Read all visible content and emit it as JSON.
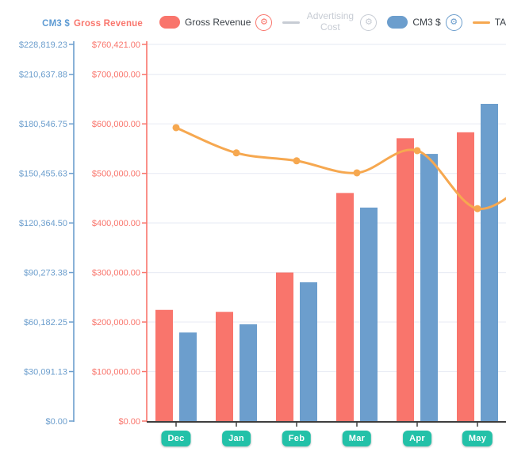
{
  "colors": {
    "grid": "#EAEDF5",
    "x_axis_line": "#3E3E3E",
    "badge_background": "#23C1A8",
    "badge_text": "#FFFFFF",
    "legend_text": "#3A4047",
    "disabled_text": "#C7CCD4",
    "background": "#FFFFFF"
  },
  "legend": {
    "gear_icon": "⚙",
    "items": [
      {
        "id": "gross-revenue",
        "label": "Gross Revenue",
        "swatch": "box",
        "color": "#F9756C",
        "enabled": true,
        "wrap": false
      },
      {
        "id": "advertising-cost",
        "label": "Advertising Cost",
        "swatch": "line",
        "color": "#C7CCD4",
        "enabled": false,
        "wrap": true
      },
      {
        "id": "cm3",
        "label": "CM3 $",
        "swatch": "box",
        "color": "#6C9ECD",
        "enabled": true,
        "wrap": false
      },
      {
        "id": "tacos",
        "label": "TACoS",
        "swatch": "line",
        "color": "#F6A850",
        "enabled": true,
        "wrap": false
      }
    ]
  },
  "chart_data": {
    "type": "bar",
    "subtype": "grouped bars with overlay line, dual left axes",
    "categories": [
      "Dec",
      "Jan",
      "Feb",
      "Mar",
      "Apr",
      "May"
    ],
    "grid": true,
    "x_tick_style": "teal rounded badges",
    "axes": {
      "cm3": {
        "title": "CM3 $",
        "color": "#6C9ECD",
        "max": 228819.23,
        "tick_values": [
          228819.23,
          210637.88,
          180546.75,
          150455.63,
          120364.5,
          90273.38,
          60182.25,
          30091.13,
          0
        ],
        "tick_labels": [
          "$228,819.23",
          "$210,637.88",
          "$180,546.75",
          "$150,455.63",
          "$120,364.50",
          "$90,273.38",
          "$60,182.25",
          "$30,091.13",
          "$0.00"
        ]
      },
      "gross": {
        "title": "Gross Revenue",
        "color": "#F9756C",
        "max": 760421,
        "tick_values": [
          760421,
          700000,
          600000,
          500000,
          400000,
          300000,
          200000,
          100000,
          0
        ],
        "tick_labels": [
          "$760,421.00",
          "$700,000.00",
          "$600,000.00",
          "$500,000.00",
          "$400,000.00",
          "$300,000.00",
          "$200,000.00",
          "$100,000.00",
          "$0.00"
        ]
      }
    },
    "series": [
      {
        "name": "Gross Revenue",
        "type": "bar",
        "axis": "gross",
        "color": "#F9756C",
        "values": [
          224500,
          220500,
          300000,
          460500,
          571000,
          583000
        ]
      },
      {
        "name": "CM3 $",
        "type": "bar",
        "axis": "cm3",
        "color": "#6C9ECD",
        "values": [
          53800,
          58800,
          84300,
          129700,
          162300,
          192700
        ]
      },
      {
        "name": "Advertising Cost",
        "type": "line",
        "color": "#C7CCD4",
        "visible": false,
        "values": []
      },
      {
        "name": "TACoS",
        "type": "line",
        "color": "#F6A850",
        "axis_hidden": true,
        "values_fraction_of_plot": [
          0.779,
          0.712,
          0.691,
          0.659,
          0.718,
          0.564
        ],
        "right_edge_fraction": 0.608
      }
    ]
  }
}
